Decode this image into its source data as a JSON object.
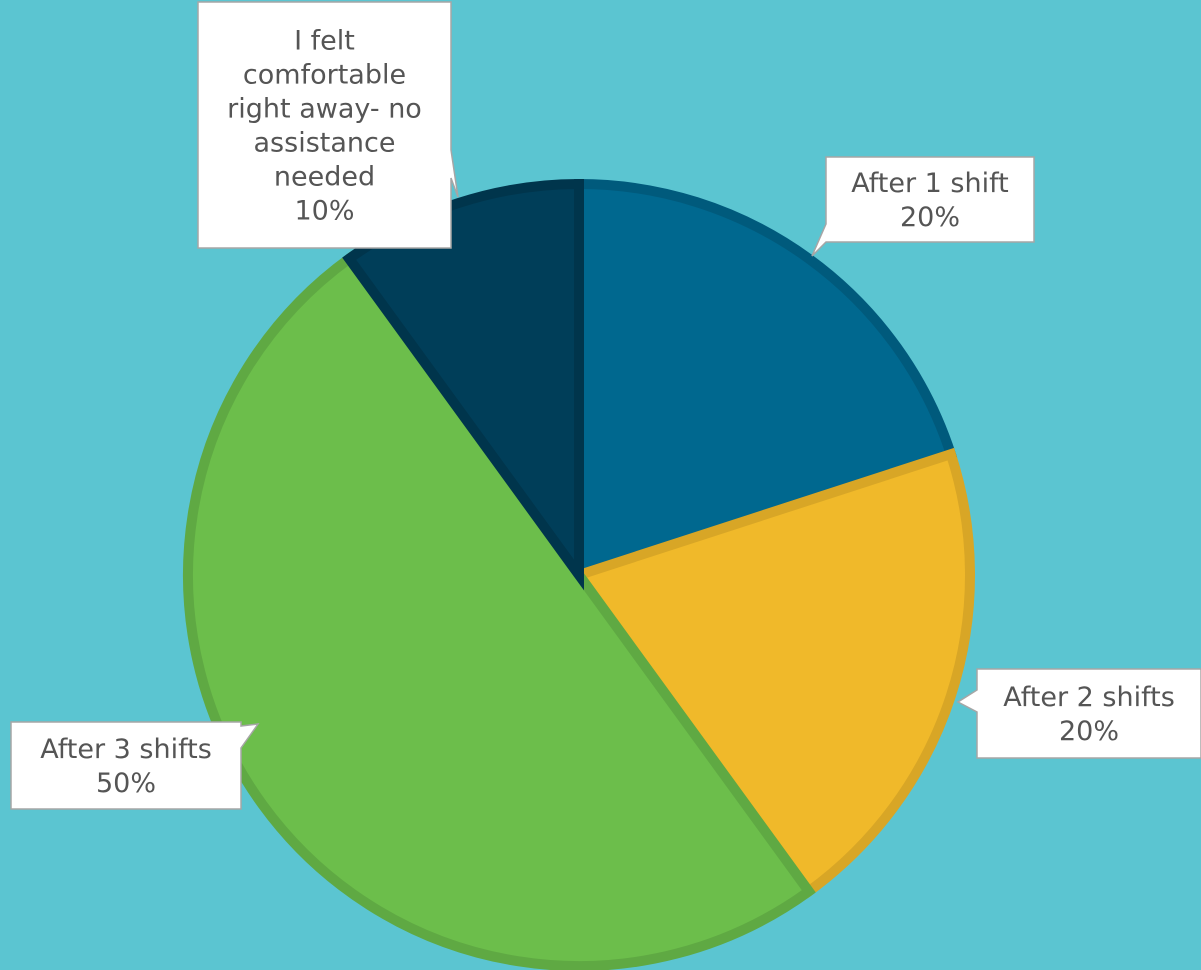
{
  "chart_data": {
    "type": "pie",
    "title": "",
    "slices": [
      {
        "label_lines": [
          "After 1 shift"
        ],
        "percent_label": "20%",
        "value": 20,
        "color": "#00688f",
        "stroke": "#005a7c"
      },
      {
        "label_lines": [
          "After 2 shifts"
        ],
        "percent_label": "20%",
        "value": 20,
        "color": "#f0b92a",
        "stroke": "#d8a626"
      },
      {
        "label_lines": [
          "After 3 shifts"
        ],
        "percent_label": "50%",
        "value": 50,
        "color": "#6cbe4b",
        "stroke": "#5fa943"
      },
      {
        "label_lines": [
          "I felt",
          "comfortable",
          "right away- no",
          "assistance",
          "needed"
        ],
        "percent_label": "10%",
        "value": 10,
        "color": "#003e59",
        "stroke": "#00354c"
      }
    ],
    "start_angle_deg": 0,
    "direction": "clockwise",
    "legend": "none",
    "label_style": "callout",
    "background_color": "#5bc5d1"
  }
}
